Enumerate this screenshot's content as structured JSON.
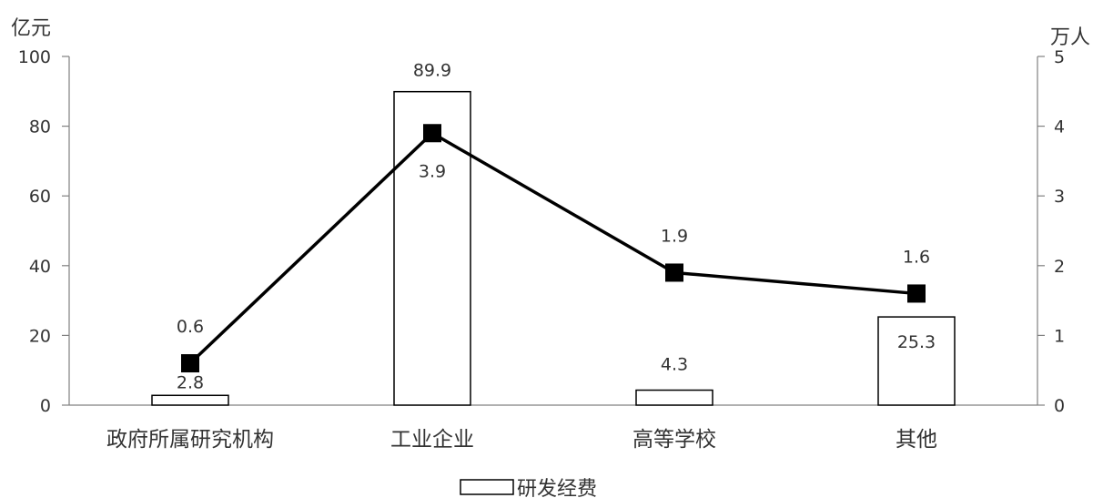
{
  "chart_data": {
    "type": "bar+line",
    "categories": [
      "政府所属研究机构",
      "工业企业",
      "高等学校",
      "其他"
    ],
    "bar_series": {
      "name": "研发经费",
      "values": [
        2.8,
        89.9,
        4.3,
        25.3
      ],
      "labels": [
        "2.8",
        "89.9",
        "4.3",
        "25.3"
      ]
    },
    "line_series": {
      "values": [
        0.6,
        3.9,
        1.9,
        1.6
      ],
      "labels": [
        "0.6",
        "3.9",
        "1.9",
        "1.6"
      ]
    },
    "y_left": {
      "unit": "亿元",
      "range": [
        0,
        100
      ],
      "ticks": [
        "0",
        "20",
        "40",
        "60",
        "80",
        "100"
      ]
    },
    "y_right": {
      "unit": "万人",
      "range": [
        0,
        5
      ],
      "ticks": [
        "0",
        "1",
        "2",
        "3",
        "4",
        "5"
      ]
    },
    "grid": false,
    "legend": {
      "position": "bottom",
      "entries": [
        "研发经费"
      ]
    },
    "colors": {
      "bar_fill": "#ffffff",
      "bar_stroke": "#000000",
      "line": "#000000",
      "marker": "#000000",
      "axis": "#808080"
    }
  }
}
